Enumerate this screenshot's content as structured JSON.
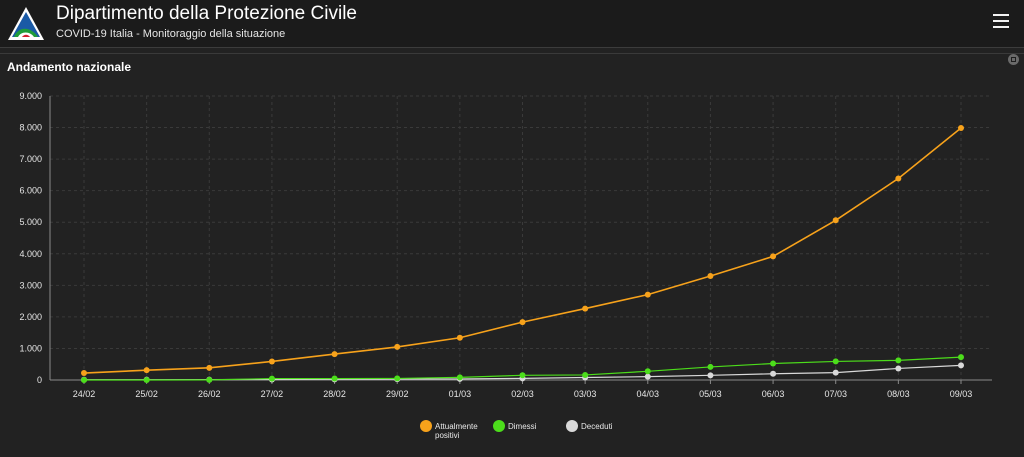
{
  "header": {
    "title": "Dipartimento della Protezione Civile",
    "subtitle": "COVID-19 Italia - Monitoraggio della situazione"
  },
  "panel": {
    "title": "Andamento nazionale"
  },
  "colors": {
    "background": "#222222",
    "grid": "#3a3a3a",
    "text": "#e6e6e6",
    "attualmente_positivi": "#f7a21b",
    "dimessi": "#4cdd1b",
    "deceduti": "#d9d9d9"
  },
  "chart_data": {
    "type": "line",
    "x": [
      "24/02",
      "25/02",
      "26/02",
      "27/02",
      "28/02",
      "29/02",
      "01/03",
      "02/03",
      "03/03",
      "04/03",
      "05/03",
      "06/03",
      "07/03",
      "08/03",
      "09/03"
    ],
    "ylim": [
      0,
      9000
    ],
    "yticks": [
      0,
      1000,
      2000,
      3000,
      4000,
      5000,
      6000,
      7000,
      8000,
      9000
    ],
    "ytick_labels": [
      "0",
      "1.000",
      "2.000",
      "3.000",
      "4.000",
      "5.000",
      "6.000",
      "7.000",
      "8.000",
      "9.000"
    ],
    "grid": true,
    "legend_position": "bottom",
    "series": [
      {
        "name": "Attualmente positivi",
        "color": "#f7a21b",
        "values": [
          221,
          311,
          385,
          588,
          821,
          1049,
          1339,
          1835,
          2263,
          2706,
          3296,
          3916,
          5061,
          6387,
          7985
        ]
      },
      {
        "name": "Dimessi",
        "color": "#4cdd1b",
        "values": [
          1,
          1,
          3,
          45,
          46,
          50,
          83,
          149,
          160,
          276,
          414,
          523,
          589,
          622,
          724
        ]
      },
      {
        "name": "Deceduti",
        "color": "#d9d9d9",
        "values": [
          7,
          10,
          12,
          17,
          21,
          29,
          34,
          52,
          79,
          107,
          148,
          197,
          233,
          366,
          463
        ]
      }
    ]
  },
  "legend": {
    "items": [
      "Attualmente positivi",
      "Dimessi",
      "Deceduti"
    ]
  }
}
